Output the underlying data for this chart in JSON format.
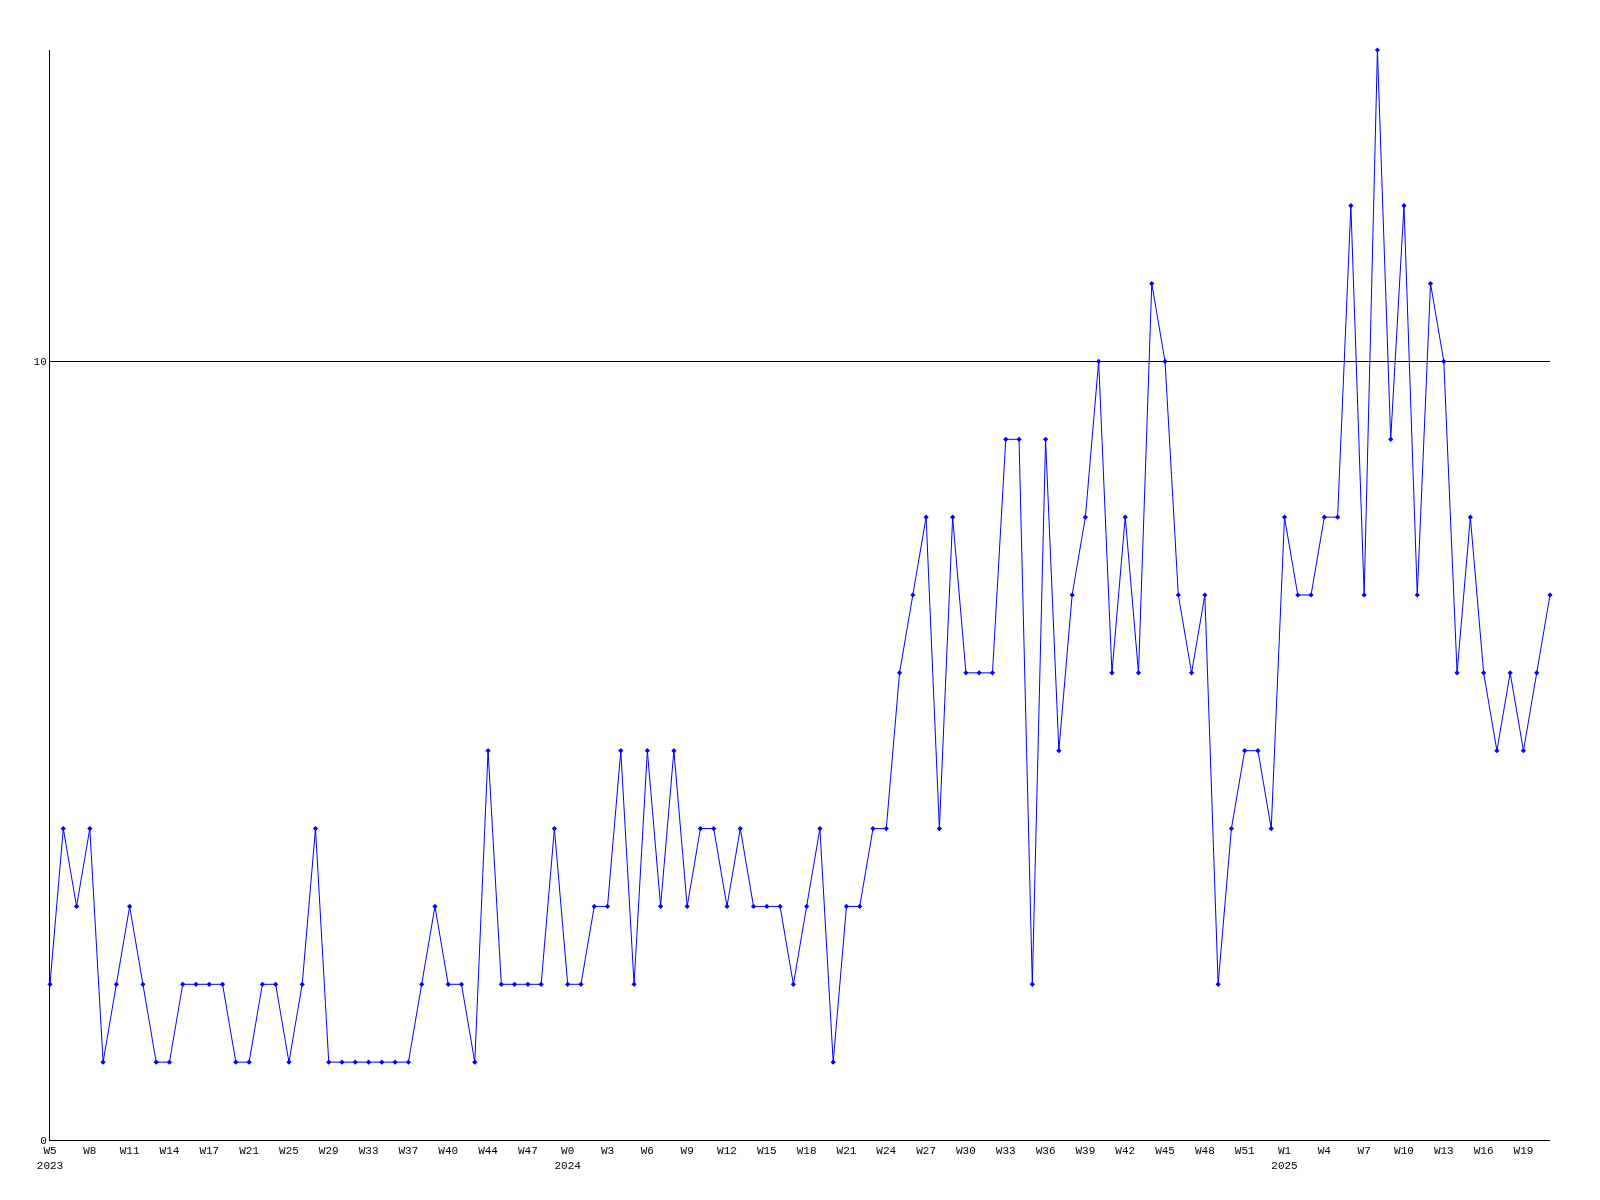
{
  "chart_data": {
    "type": "line",
    "categories": [
      "W5\n2023",
      null,
      null,
      "W8",
      null,
      null,
      "W11",
      null,
      null,
      "W14",
      null,
      null,
      "W17",
      null,
      null,
      "W21",
      null,
      null,
      "W25",
      null,
      null,
      "W29",
      null,
      null,
      "W33",
      null,
      null,
      "W37",
      null,
      null,
      "W40",
      null,
      null,
      "W44",
      null,
      null,
      "W47",
      null,
      null,
      "W0\n2024",
      null,
      null,
      "W3",
      null,
      null,
      "W6",
      null,
      null,
      "W9",
      null,
      null,
      "W12",
      null,
      null,
      "W15",
      null,
      null,
      "W18",
      null,
      null,
      "W21",
      null,
      null,
      "W24",
      null,
      null,
      "W27",
      null,
      null,
      "W30",
      null,
      null,
      "W33",
      null,
      null,
      "W36",
      null,
      null,
      "W39",
      null,
      null,
      "W42",
      null,
      null,
      "W45",
      null,
      null,
      "W48",
      null,
      null,
      "W51",
      null,
      null,
      "W1\n2025",
      null,
      null,
      "W4",
      null,
      null,
      "W7",
      null,
      null,
      "W10",
      null,
      null,
      "W13",
      null,
      null,
      "W16",
      null,
      null,
      "W19",
      null,
      null
    ],
    "series": [
      {
        "color": "#0000ff",
        "values": [
          2,
          4,
          3,
          4,
          1,
          2,
          3,
          2,
          1,
          1,
          2,
          2,
          2,
          2,
          1,
          1,
          2,
          2,
          1,
          2,
          4,
          1,
          1,
          1,
          1,
          1,
          1,
          1,
          2,
          3,
          2,
          2,
          1,
          5,
          2,
          2,
          2,
          2,
          4,
          2,
          2,
          3,
          3,
          5,
          2,
          5,
          3,
          5,
          3,
          4,
          4,
          3,
          4,
          3,
          3,
          3,
          2,
          3,
          4,
          1,
          3,
          3,
          4,
          4,
          6,
          7,
          8,
          4,
          8,
          6,
          6,
          6,
          9,
          9,
          2,
          9,
          5,
          7,
          8,
          10,
          6,
          8,
          6,
          11,
          10,
          7,
          6,
          7,
          2,
          4,
          5,
          5,
          4,
          8,
          7,
          7,
          8,
          8,
          12,
          7,
          14,
          9,
          12,
          7,
          11,
          10,
          6,
          8,
          6,
          5,
          6,
          5,
          6,
          7
        ]
      }
    ],
    "ylim": [
      0,
      14
    ],
    "yticks": [
      0,
      10
    ],
    "grid": "y",
    "marker": "diamond",
    "line_style": "solid",
    "legend": false
  }
}
